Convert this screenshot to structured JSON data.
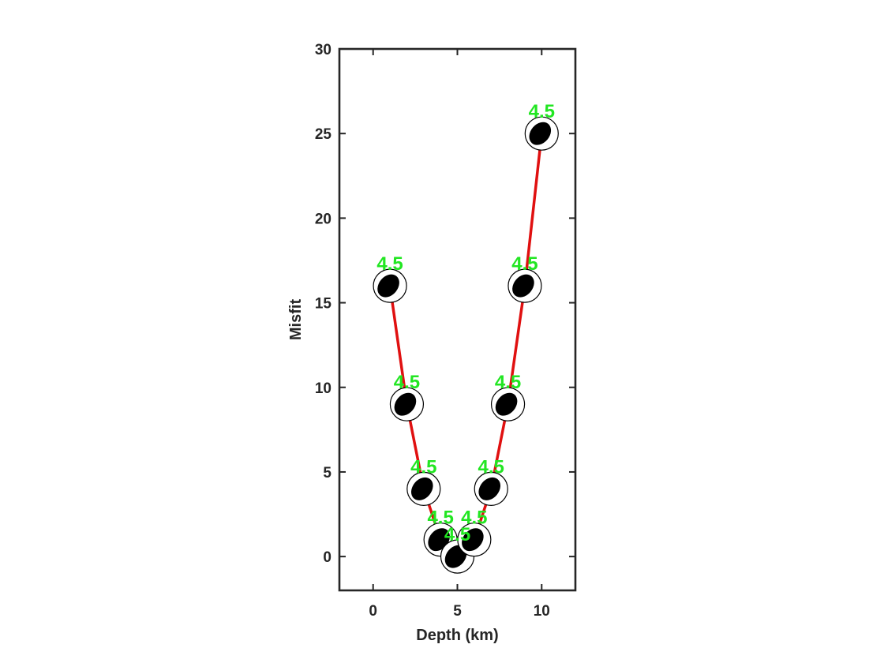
{
  "chart_data": {
    "type": "scatter",
    "title": "",
    "xlabel": "Depth (km)",
    "ylabel": "Misfit",
    "xlim": [
      -2,
      12
    ],
    "ylim": [
      -2,
      30
    ],
    "xticks": [
      0,
      5,
      10
    ],
    "yticks": [
      0,
      5,
      10,
      15,
      20,
      25,
      30
    ],
    "grid": false,
    "legend": "none",
    "colors": {
      "line": "#e01010",
      "label": "#22e622",
      "beachball_fill": "#000000",
      "axis": "#262626"
    },
    "series": [
      {
        "values": [
          {
            "x": 1,
            "y": 16,
            "label": "4.5"
          },
          {
            "x": 2,
            "y": 9,
            "label": "4.5"
          },
          {
            "x": 3,
            "y": 4,
            "label": "4.5"
          },
          {
            "x": 4,
            "y": 1,
            "label": "4.5"
          },
          {
            "x": 5,
            "y": 0,
            "label": "4.5"
          },
          {
            "x": 6,
            "y": 1,
            "label": "4.5"
          },
          {
            "x": 7,
            "y": 4,
            "label": "4.5"
          },
          {
            "x": 8,
            "y": 9,
            "label": "4.5"
          },
          {
            "x": 9,
            "y": 16,
            "label": "4.5"
          },
          {
            "x": 10,
            "y": 25,
            "label": "4.5"
          }
        ]
      }
    ]
  }
}
